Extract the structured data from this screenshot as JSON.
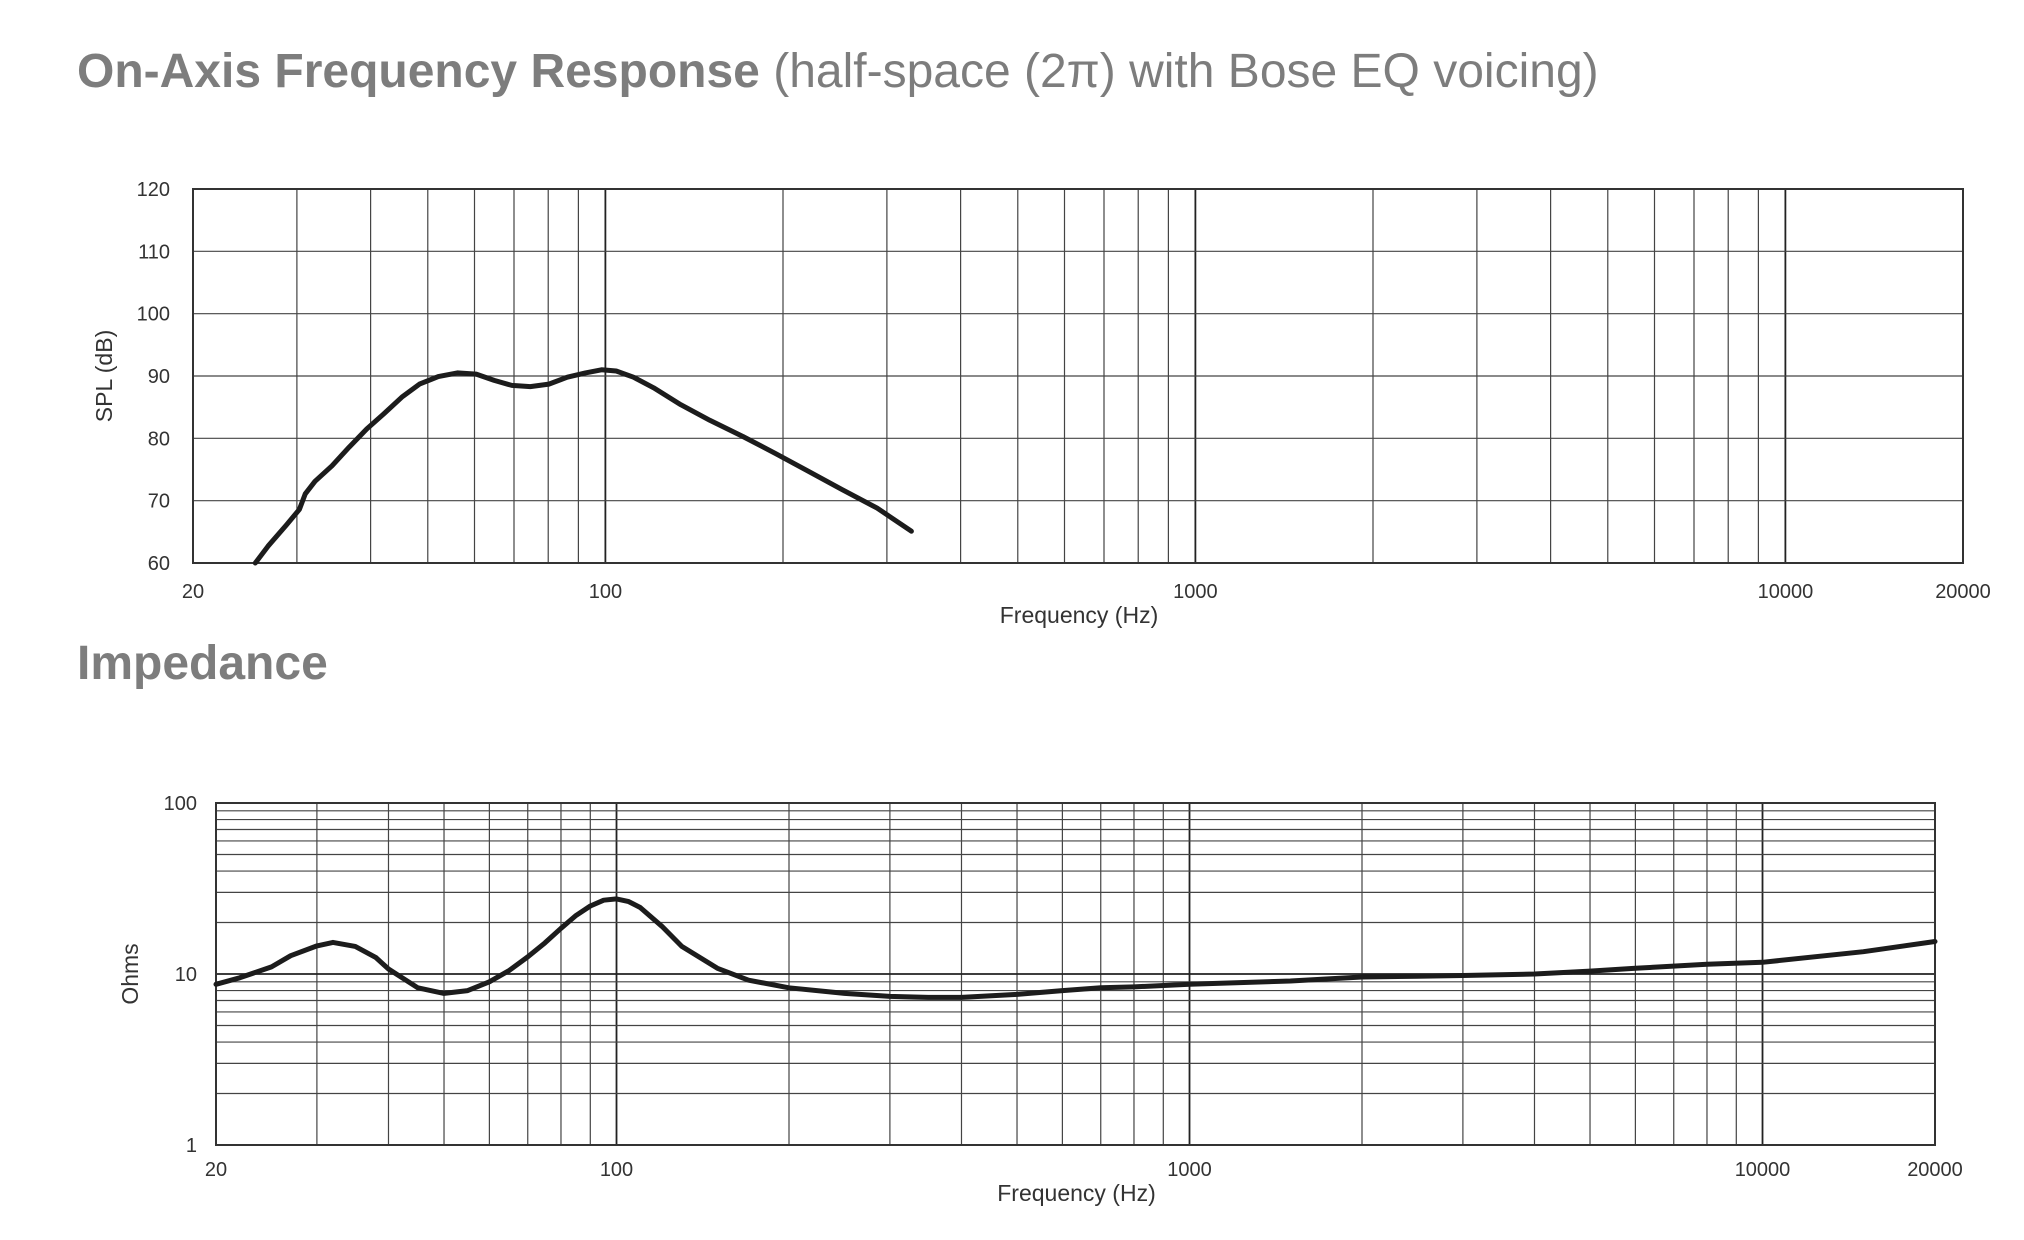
{
  "titles": {
    "response_bold": "On-Axis Frequency Response",
    "response_light": "(half-space (2π) with Bose EQ voicing)",
    "impedance": "Impedance"
  },
  "chart_data": [
    {
      "type": "line",
      "title": "On-Axis Frequency Response",
      "subtitle": "(half-space (2π) with Bose EQ voicing)",
      "xlabel": "Frequency (Hz)",
      "ylabel": "SPL (dB)",
      "x_scale": "log",
      "xlim": [
        20,
        20000
      ],
      "ylim": [
        60,
        120
      ],
      "x_ticks": [
        20,
        100,
        1000,
        10000,
        20000
      ],
      "x_tick_labels": [
        "20",
        "100",
        "1000",
        "10000",
        "20000"
      ],
      "y_ticks": [
        60,
        70,
        80,
        90,
        100,
        110,
        120
      ],
      "y_tick_labels": [
        "60",
        "70",
        "80",
        "90",
        "100",
        "110",
        "120"
      ],
      "grid": true,
      "series": [
        {
          "x": [
            25.5,
            26.8,
            28.8,
            30.3,
            31.0,
            32.2,
            34.4,
            36.8,
            39.4,
            42.2,
            45.3,
            48.4,
            52.1,
            56.1,
            60.4,
            64.8,
            69.4,
            74.6,
            80.2,
            86.2,
            92.5,
            98.5,
            104.3,
            111.6,
            120.7,
            134.2,
            150.3,
            171.0,
            193.9,
            219.9,
            251.6,
            288.8,
            330.1
          ],
          "values": [
            60.0,
            62.7,
            66.1,
            68.6,
            71.1,
            73.1,
            75.6,
            78.6,
            81.5,
            84.0,
            86.7,
            88.7,
            89.9,
            90.5,
            90.3,
            89.3,
            88.5,
            88.3,
            88.7,
            89.8,
            90.5,
            91.0,
            90.8,
            89.8,
            88.1,
            85.4,
            82.9,
            80.3,
            77.6,
            74.8,
            71.8,
            68.8,
            65.1
          ]
        }
      ]
    },
    {
      "type": "line",
      "title": "Impedance",
      "xlabel": "Frequency (Hz)",
      "ylabel": "Ohms",
      "x_scale": "log",
      "y_scale": "log",
      "xlim": [
        20,
        20000
      ],
      "ylim": [
        1,
        100
      ],
      "x_ticks": [
        20,
        100,
        1000,
        10000,
        20000
      ],
      "x_tick_labels": [
        "20",
        "100",
        "1000",
        "10000",
        "20000"
      ],
      "y_ticks": [
        1,
        10,
        100
      ],
      "y_tick_labels": [
        "1",
        "10",
        "100"
      ],
      "grid": true,
      "series": [
        {
          "x": [
            20,
            22,
            25,
            27,
            30,
            32,
            35,
            38,
            40,
            45,
            50,
            55,
            60,
            65,
            70,
            75,
            80,
            85,
            90,
            95,
            100,
            105,
            110,
            120,
            130,
            150,
            170,
            200,
            250,
            300,
            350,
            400,
            500,
            600,
            700,
            800,
            1000,
            1500,
            2000,
            2500,
            3000,
            4000,
            5000,
            6000,
            8000,
            10000,
            15000,
            20000
          ],
          "values": [
            8.7,
            9.5,
            11.0,
            12.8,
            14.6,
            15.3,
            14.5,
            12.5,
            10.7,
            8.3,
            7.7,
            8.0,
            9.0,
            10.5,
            12.6,
            15.2,
            18.5,
            22.0,
            25.0,
            27.0,
            27.5,
            26.5,
            24.5,
            19.0,
            14.5,
            10.8,
            9.2,
            8.3,
            7.7,
            7.4,
            7.3,
            7.3,
            7.6,
            8.0,
            8.3,
            8.4,
            8.7,
            9.1,
            9.6,
            9.7,
            9.8,
            10.0,
            10.4,
            10.8,
            11.4,
            11.7,
            13.5,
            15.5
          ]
        }
      ]
    }
  ]
}
